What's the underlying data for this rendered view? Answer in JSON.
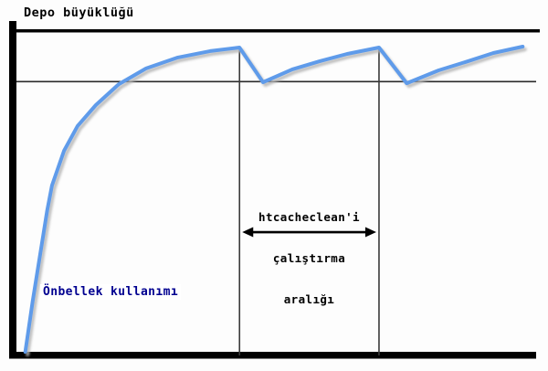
{
  "title": "Depo büyüklüğü",
  "labels": {
    "y_axis": "Depo büyüklüğü",
    "curve": "Önbellek kullanımı",
    "interval_lines": [
      "htcacheclean'i",
      "çalıştırma",
      "aralığı"
    ]
  },
  "colors": {
    "curve": "#5f9bea",
    "curve_shadow": "#b4b4b4",
    "curve_label_text": "#000090",
    "axis": "#000000",
    "thin_line": "#2a2a2a",
    "arrow": "#000000"
  },
  "chart_data": {
    "type": "line",
    "title": "",
    "xlabel": "",
    "ylabel": "Depo büyüklüğü",
    "xlim": [
      0,
      100
    ],
    "ylim": [
      0,
      100
    ],
    "grid": false,
    "legend_position": "none",
    "x_ticks": [],
    "y_ticks": [],
    "series": [
      {
        "name": "Önbellek kullanımı",
        "color": "#5f9bea",
        "points": [
          [
            1.7,
            0
          ],
          [
            3.1,
            15.6
          ],
          [
            4.5,
            29.8
          ],
          [
            5.9,
            44.0
          ],
          [
            6.8,
            51.7
          ],
          [
            9.1,
            62.5
          ],
          [
            11.7,
            70.2
          ],
          [
            15.2,
            76.7
          ],
          [
            19.6,
            83.2
          ],
          [
            24.8,
            88.1
          ],
          [
            30.9,
            91.5
          ],
          [
            37.1,
            93.5
          ],
          [
            42.7,
            94.6
          ],
          [
            47.2,
            83.8
          ],
          [
            52.8,
            87.8
          ],
          [
            58.0,
            90.3
          ],
          [
            63.3,
            92.6
          ],
          [
            69.4,
            94.6
          ],
          [
            74.7,
            83.5
          ],
          [
            80.8,
            87.5
          ],
          [
            86.0,
            90.1
          ],
          [
            91.3,
            92.9
          ],
          [
            96.9,
            94.9
          ]
        ]
      }
    ],
    "limit_line_y": 84,
    "event_marker_x": [
      42.7,
      69.4
    ],
    "event_marker_top_y": 94.6,
    "interval_arrow": {
      "y": 37.2,
      "label": "htcacheclean'i çalıştırma aralığı"
    }
  }
}
